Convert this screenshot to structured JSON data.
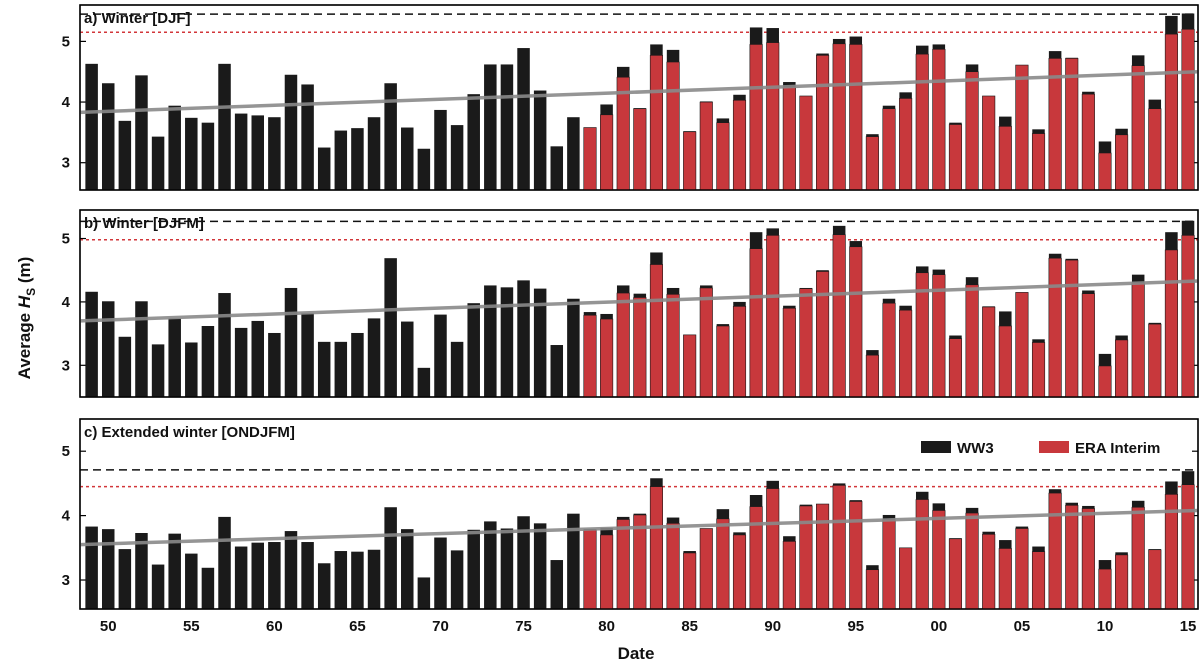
{
  "chart_data": {
    "type": "bar",
    "xlabel": "Date",
    "ylabel_prefix": "Average ",
    "ylabel_symbol": "H",
    "ylabel_sub": "S",
    "ylabel_suffix": " (m)",
    "years": [
      1949,
      1950,
      1951,
      1952,
      1953,
      1954,
      1955,
      1956,
      1957,
      1958,
      1959,
      1960,
      1961,
      1962,
      1963,
      1964,
      1965,
      1966,
      1967,
      1968,
      1969,
      1970,
      1971,
      1972,
      1973,
      1974,
      1975,
      1976,
      1977,
      1978,
      1979,
      1980,
      1981,
      1982,
      1983,
      1984,
      1985,
      1986,
      1987,
      1988,
      1989,
      1990,
      1991,
      1992,
      1993,
      1994,
      1995,
      1996,
      1997,
      1998,
      1999,
      2000,
      2001,
      2002,
      2003,
      2004,
      2005,
      2006,
      2007,
      2008,
      2009,
      2010,
      2011,
      2012,
      2013,
      2014,
      2015
    ],
    "x_tick_values": [
      1950,
      1955,
      1960,
      1965,
      1970,
      1975,
      1980,
      1985,
      1990,
      1995,
      2000,
      2005,
      2010,
      2015
    ],
    "x_tick_labels": [
      "50",
      "55",
      "60",
      "65",
      "70",
      "75",
      "80",
      "85",
      "90",
      "95",
      "00",
      "05",
      "10",
      "15"
    ],
    "era_start_year": 1979,
    "legend": {
      "ww3": "WW3",
      "era": "ERA Interim",
      "placement": "top-right of panel c"
    },
    "colors": {
      "ww3": "#1a1a1a",
      "era": "#c8383c",
      "trend": "#8a8a8a",
      "max_ww3": "#111111",
      "max_era": "#d2363a"
    },
    "panels": [
      {
        "title": "a) Winter [DJF]",
        "ylim": [
          2.55,
          5.6
        ],
        "yticks": [
          3,
          4,
          5
        ],
        "max_ww3": 5.45,
        "max_era": 5.15,
        "trend": [
          3.83,
          4.5
        ],
        "ww3": [
          4.63,
          4.31,
          3.69,
          4.44,
          3.43,
          3.94,
          3.74,
          3.66,
          4.63,
          3.81,
          3.78,
          3.75,
          4.45,
          4.29,
          3.25,
          3.53,
          3.57,
          3.75,
          4.31,
          3.58,
          3.23,
          3.87,
          3.62,
          4.13,
          4.62,
          4.62,
          4.89,
          4.19,
          3.27,
          3.75,
          3.58,
          3.96,
          4.58,
          3.9,
          4.95,
          4.86,
          3.52,
          4.01,
          3.73,
          4.12,
          5.23,
          5.22,
          4.33,
          4.1,
          4.8,
          5.04,
          5.08,
          3.47,
          3.94,
          4.16,
          4.93,
          4.95,
          3.66,
          4.62,
          4.1,
          3.76,
          4.61,
          3.55,
          4.84,
          4.73,
          4.17,
          3.35,
          3.56,
          4.77,
          4.04,
          5.42,
          5.46
        ],
        "era": [
          null,
          null,
          null,
          null,
          null,
          null,
          null,
          null,
          null,
          null,
          null,
          null,
          null,
          null,
          null,
          null,
          null,
          null,
          null,
          null,
          null,
          null,
          null,
          null,
          null,
          null,
          null,
          null,
          null,
          null,
          3.58,
          3.79,
          4.41,
          3.89,
          4.77,
          4.66,
          3.51,
          4.0,
          3.66,
          4.03,
          4.95,
          4.98,
          4.25,
          4.1,
          4.77,
          4.96,
          4.95,
          3.43,
          3.89,
          4.06,
          4.79,
          4.87,
          3.63,
          4.5,
          4.1,
          3.6,
          4.61,
          3.48,
          4.72,
          4.72,
          4.13,
          3.16,
          3.46,
          4.6,
          3.89,
          5.12,
          5.2
        ]
      },
      {
        "title": "b) Winter [DJFM]",
        "ylim": [
          2.5,
          5.45
        ],
        "yticks": [
          3,
          4,
          5
        ],
        "max_ww3": 5.27,
        "max_era": 4.98,
        "trend": [
          3.7,
          4.33
        ],
        "ww3": [
          4.16,
          4.01,
          3.45,
          4.01,
          3.33,
          3.74,
          3.36,
          3.62,
          4.14,
          3.59,
          3.7,
          3.51,
          4.22,
          3.82,
          3.37,
          3.37,
          3.51,
          3.74,
          4.69,
          3.69,
          2.96,
          3.8,
          3.37,
          3.98,
          4.26,
          4.23,
          4.34,
          4.21,
          3.32,
          4.05,
          3.84,
          3.81,
          4.26,
          4.13,
          4.78,
          4.22,
          3.48,
          4.26,
          3.65,
          4.0,
          5.1,
          5.16,
          3.94,
          4.22,
          4.5,
          5.2,
          4.96,
          3.24,
          4.05,
          3.94,
          4.56,
          4.51,
          3.47,
          4.39,
          3.93,
          3.85,
          4.15,
          3.41,
          4.76,
          4.68,
          4.18,
          3.18,
          3.47,
          4.43,
          3.67,
          5.1,
          5.28
        ],
        "era": [
          null,
          null,
          null,
          null,
          null,
          null,
          null,
          null,
          null,
          null,
          null,
          null,
          null,
          null,
          null,
          null,
          null,
          null,
          null,
          null,
          null,
          null,
          null,
          null,
          null,
          null,
          null,
          null,
          null,
          null,
          3.79,
          3.73,
          4.14,
          4.07,
          4.59,
          4.12,
          3.48,
          4.22,
          3.62,
          3.93,
          4.84,
          5.05,
          3.9,
          4.21,
          4.48,
          5.06,
          4.87,
          3.16,
          3.98,
          3.87,
          4.46,
          4.43,
          3.42,
          4.27,
          3.92,
          3.62,
          4.15,
          3.36,
          4.69,
          4.66,
          4.13,
          2.99,
          3.4,
          4.3,
          3.65,
          4.82,
          5.05
        ]
      },
      {
        "title": "c) Extended winter [ONDJFM]",
        "ylim": [
          2.55,
          5.5
        ],
        "yticks": [
          3,
          4,
          5
        ],
        "max_ww3": 4.71,
        "max_era": 4.45,
        "trend": [
          3.55,
          4.08
        ],
        "ww3": [
          3.83,
          3.79,
          3.48,
          3.73,
          3.24,
          3.72,
          3.41,
          3.19,
          3.98,
          3.52,
          3.58,
          3.59,
          3.76,
          3.59,
          3.26,
          3.45,
          3.44,
          3.47,
          4.13,
          3.79,
          3.04,
          3.66,
          3.46,
          3.78,
          3.91,
          3.8,
          3.99,
          3.88,
          3.31,
          4.03,
          3.79,
          3.81,
          3.98,
          4.03,
          4.58,
          3.97,
          3.45,
          3.79,
          4.1,
          3.74,
          4.32,
          4.54,
          3.68,
          4.17,
          4.18,
          4.5,
          4.24,
          3.23,
          4.01,
          3.5,
          4.37,
          4.19,
          3.65,
          4.12,
          3.75,
          3.62,
          3.83,
          3.52,
          4.41,
          4.2,
          4.15,
          3.31,
          3.43,
          4.23,
          3.48,
          4.53,
          4.69
        ],
        "era": [
          null,
          null,
          null,
          null,
          null,
          null,
          null,
          null,
          null,
          null,
          null,
          null,
          null,
          null,
          null,
          null,
          null,
          null,
          null,
          null,
          null,
          null,
          null,
          null,
          null,
          null,
          null,
          null,
          null,
          null,
          3.78,
          3.7,
          3.94,
          4.01,
          4.45,
          3.88,
          3.42,
          3.8,
          3.95,
          3.7,
          4.14,
          4.42,
          3.6,
          4.15,
          4.18,
          4.47,
          4.22,
          3.16,
          3.94,
          3.5,
          4.25,
          4.08,
          3.64,
          4.04,
          3.71,
          3.49,
          3.8,
          3.44,
          4.35,
          4.16,
          4.11,
          3.17,
          3.39,
          4.13,
          3.47,
          4.33,
          4.48
        ]
      }
    ]
  }
}
